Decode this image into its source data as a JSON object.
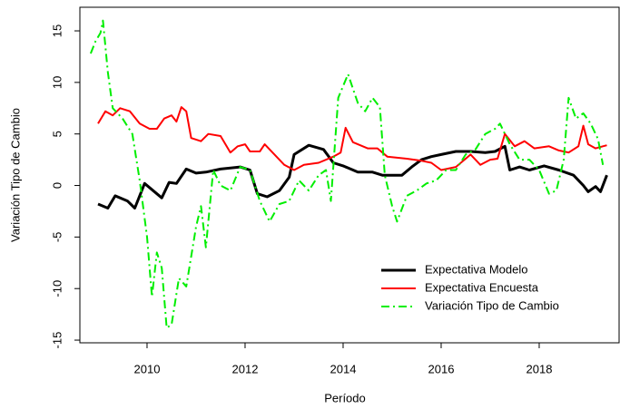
{
  "chart_data": {
    "type": "line",
    "x_label": "Período",
    "y_label": "Variación Tipo de Cambio",
    "xlim": [
      2008.63,
      2019.63
    ],
    "ylim": [
      -15.26,
      17.29
    ],
    "xticks": [
      2010,
      2012,
      2014,
      2016,
      2018
    ],
    "yticks": [
      -15,
      -10,
      -5,
      0,
      5,
      10,
      15
    ],
    "grid": false,
    "legend": "bottom-right",
    "series": [
      {
        "name": "Expectativa Modelo",
        "color": "#000000",
        "dash": "solid",
        "x": [
          2009.0,
          2009.2,
          2009.35,
          2009.6,
          2009.75,
          2009.95,
          2010.3,
          2010.45,
          2010.6,
          2010.8,
          2011.0,
          2011.2,
          2011.5,
          2011.9,
          2012.1,
          2012.25,
          2012.45,
          2012.7,
          2012.9,
          2013.0,
          2013.3,
          2013.6,
          2013.8,
          2014.0,
          2014.3,
          2014.6,
          2014.8,
          2015.0,
          2015.2,
          2015.4,
          2015.6,
          2015.8,
          2016.0,
          2016.3,
          2016.6,
          2016.9,
          2017.1,
          2017.3,
          2017.4,
          2017.6,
          2017.8,
          2018.1,
          2018.4,
          2018.7,
          2018.9,
          2019.0,
          2019.15,
          2019.25,
          2019.38
        ],
        "values": [
          -1.8,
          -2.2,
          -1.0,
          -1.5,
          -2.2,
          0.2,
          -1.2,
          0.3,
          0.2,
          1.6,
          1.2,
          1.3,
          1.6,
          1.8,
          1.5,
          -0.8,
          -1.1,
          -0.5,
          0.8,
          3.0,
          3.9,
          3.5,
          2.2,
          1.9,
          1.3,
          1.3,
          1.0,
          1.0,
          1.0,
          1.8,
          2.5,
          2.8,
          3.0,
          3.3,
          3.3,
          3.2,
          3.3,
          3.8,
          1.5,
          1.8,
          1.5,
          1.9,
          1.5,
          1.0,
          0,
          -0.6,
          -0.1,
          -0.6,
          1.0
        ]
      },
      {
        "name": "Expectativa Encuesta",
        "color": "#ff0000",
        "dash": "solid",
        "x": [
          2009.0,
          2009.15,
          2009.3,
          2009.45,
          2009.65,
          2009.85,
          2010.05,
          2010.2,
          2010.35,
          2010.5,
          2010.6,
          2010.7,
          2010.8,
          2010.9,
          2011.1,
          2011.25,
          2011.5,
          2011.7,
          2011.85,
          2012.0,
          2012.1,
          2012.3,
          2012.4,
          2012.6,
          2012.8,
          2013.0,
          2013.2,
          2013.5,
          2013.8,
          2013.95,
          2014.05,
          2014.2,
          2014.5,
          2014.7,
          2014.9,
          2015.3,
          2015.6,
          2015.8,
          2016.0,
          2016.3,
          2016.5,
          2016.6,
          2016.8,
          2017.0,
          2017.15,
          2017.3,
          2017.5,
          2017.7,
          2017.9,
          2018.2,
          2018.4,
          2018.6,
          2018.8,
          2018.9,
          2019.0,
          2019.15,
          2019.3,
          2019.38
        ],
        "values": [
          6.0,
          7.2,
          6.8,
          7.5,
          7.2,
          6.0,
          5.5,
          5.5,
          6.5,
          6.8,
          6.2,
          7.6,
          7.2,
          4.6,
          4.3,
          5.0,
          4.8,
          3.2,
          3.8,
          4.0,
          3.3,
          3.3,
          4.0,
          3.0,
          2.0,
          1.5,
          2.0,
          2.2,
          2.8,
          3.2,
          5.6,
          4.2,
          3.6,
          3.6,
          2.8,
          2.6,
          2.4,
          2.2,
          1.5,
          1.8,
          2.6,
          3.0,
          2.0,
          2.5,
          2.6,
          5.0,
          3.8,
          4.3,
          3.6,
          3.8,
          3.4,
          3.2,
          3.8,
          5.8,
          4.0,
          3.6,
          3.8,
          3.9
        ]
      },
      {
        "name": "Variación Tipo de Cambio",
        "color": "#00ee00",
        "dash": "dashdot",
        "x": [
          2008.85,
          2008.95,
          2009.05,
          2009.1,
          2009.2,
          2009.3,
          2009.5,
          2009.7,
          2009.85,
          2010.0,
          2010.1,
          2010.2,
          2010.3,
          2010.4,
          2010.5,
          2010.65,
          2010.8,
          2011.0,
          2011.1,
          2011.2,
          2011.35,
          2011.5,
          2011.7,
          2011.9,
          2012.1,
          2012.3,
          2012.5,
          2012.7,
          2012.9,
          2013.1,
          2013.3,
          2013.5,
          2013.65,
          2013.75,
          2013.9,
          2014.1,
          2014.3,
          2014.45,
          2014.6,
          2014.75,
          2014.85,
          2015.0,
          2015.1,
          2015.3,
          2015.5,
          2015.7,
          2015.9,
          2016.1,
          2016.3,
          2016.5,
          2016.7,
          2016.9,
          2017.1,
          2017.2,
          2017.4,
          2017.6,
          2017.8,
          2018.0,
          2018.2,
          2018.35,
          2018.5,
          2018.6,
          2018.75,
          2018.9,
          2019.05,
          2019.2,
          2019.3
        ],
        "values": [
          12.8,
          14,
          14.8,
          16,
          11,
          7.5,
          6.5,
          5.0,
          0.5,
          -5,
          -10.8,
          -6.5,
          -8,
          -13.8,
          -13.5,
          -9,
          -9.8,
          -4,
          -2,
          -6,
          1.5,
          0,
          -0.5,
          1.8,
          1.5,
          -1.5,
          -3.5,
          -1.8,
          -1.5,
          0.5,
          -0.5,
          1.0,
          1.5,
          -1.5,
          8.5,
          10.8,
          8.0,
          7.2,
          8.5,
          7.6,
          1.0,
          -2.0,
          -3.5,
          -1.0,
          -0.5,
          0.2,
          0.5,
          1.5,
          1.5,
          3.0,
          3.5,
          5.0,
          5.5,
          6.0,
          4.0,
          2.5,
          2.5,
          1.5,
          -0.8,
          -0.5,
          2.5,
          8.5,
          6.5,
          7.0,
          6.0,
          4.5,
          2.0
        ]
      }
    ]
  }
}
